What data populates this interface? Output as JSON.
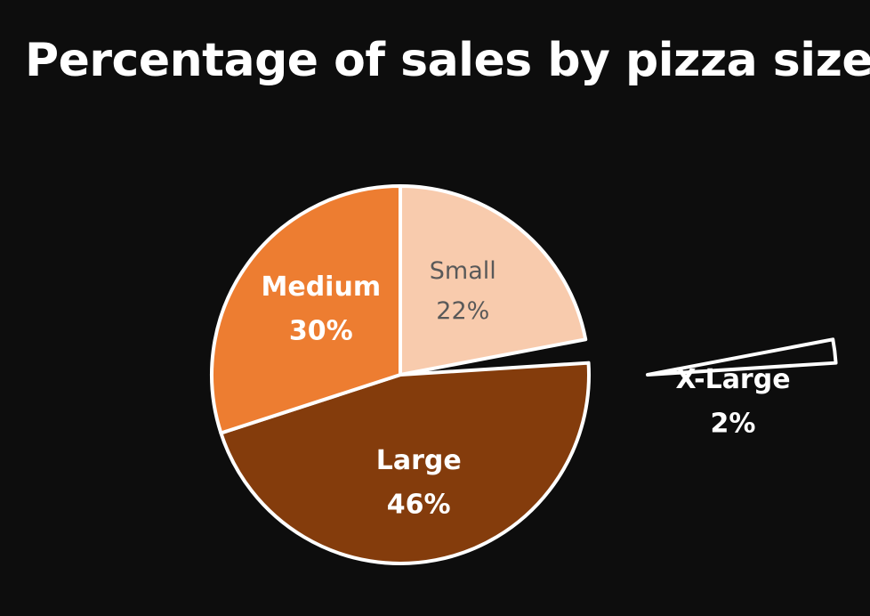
{
  "chart_data": {
    "type": "pie",
    "title": "Percentage of sales by pizza size",
    "slices": [
      {
        "name": "Small",
        "percent_label": "22%",
        "value": 22,
        "color": "#f8cbad",
        "label_color": "#595959",
        "label_bold": false,
        "exploded": false,
        "label_position": "inside"
      },
      {
        "name": "X-Large",
        "percent_label": "2%",
        "value": 2,
        "color": "#0d0d0d",
        "label_color": "#ffffff",
        "label_bold": true,
        "exploded": true,
        "label_position": "outside-right"
      },
      {
        "name": "Large",
        "percent_label": "46%",
        "value": 46,
        "color": "#843c0c",
        "label_color": "#ffffff",
        "label_bold": true,
        "exploded": false,
        "label_position": "inside"
      },
      {
        "name": "Medium",
        "percent_label": "30%",
        "value": 30,
        "color": "#ed7d31",
        "label_color": "#ffffff",
        "label_bold": true,
        "exploded": false,
        "label_position": "inside"
      }
    ],
    "start_angle": "top",
    "direction": "clockwise",
    "slice_border_color": "#ffffff",
    "legend": "none"
  }
}
